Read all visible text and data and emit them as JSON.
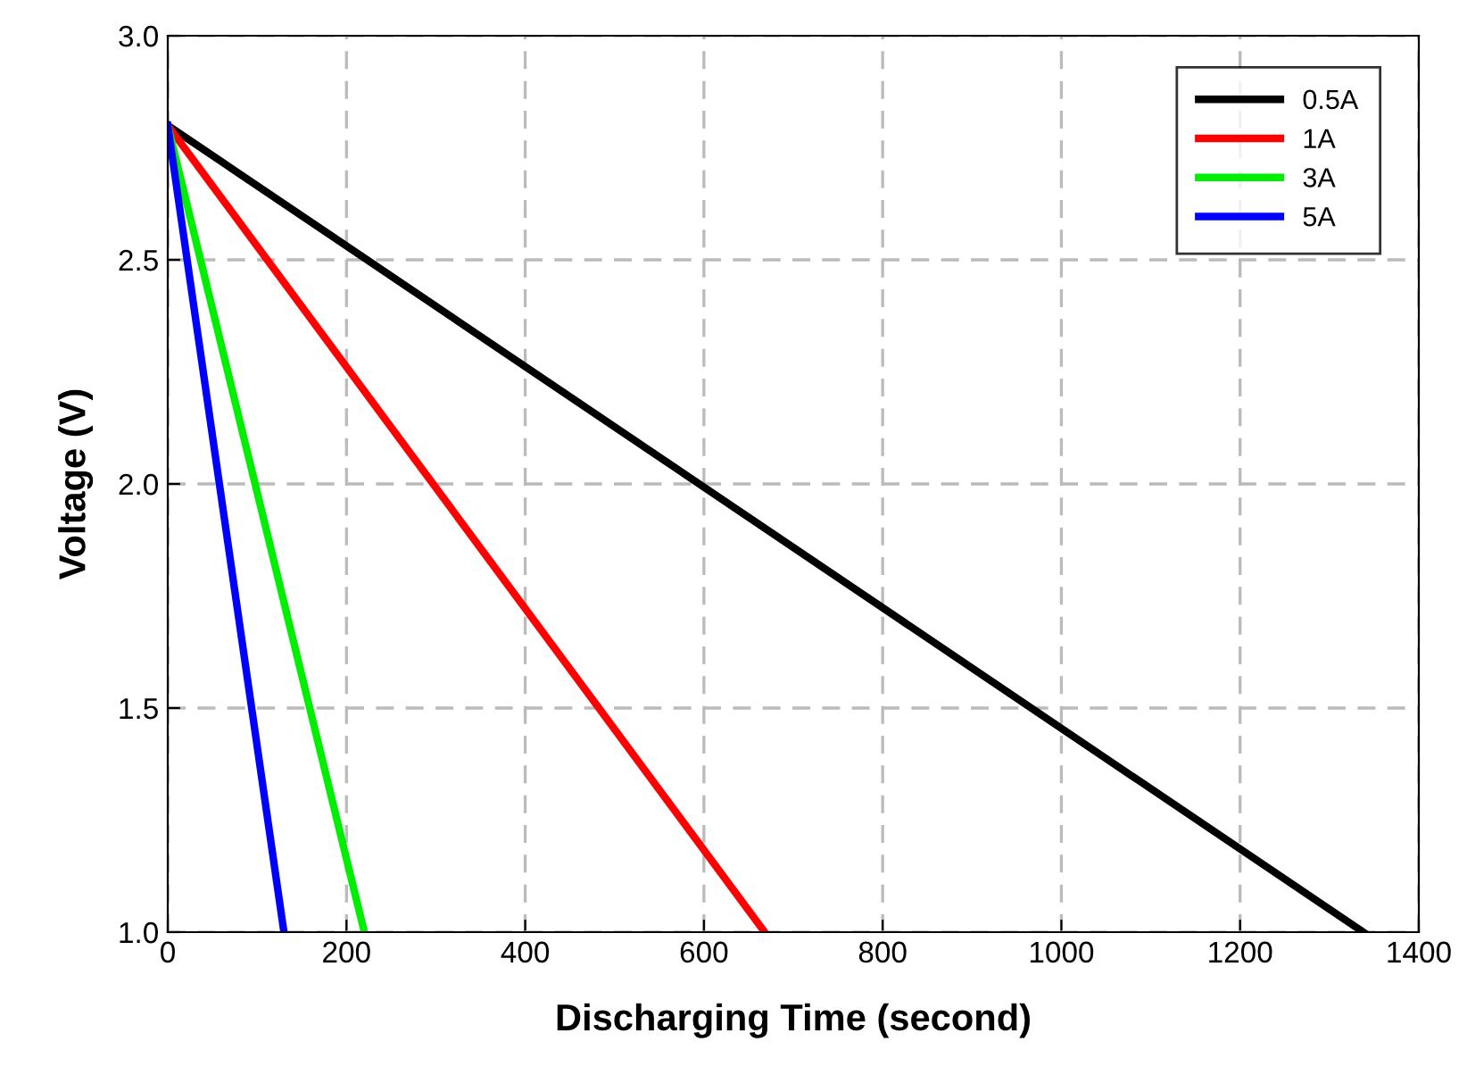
{
  "chart_data": {
    "type": "line",
    "xlabel": "Discharging Time (second)",
    "ylabel": "Voltage (V)",
    "xlim": [
      0,
      1400
    ],
    "ylim": [
      1.0,
      3.0
    ],
    "xticks": [
      0,
      200,
      400,
      600,
      800,
      1000,
      1200,
      1400
    ],
    "yticks": [
      {
        "value": 1.0,
        "label": "1.0"
      },
      {
        "value": 1.5,
        "label": "1.5"
      },
      {
        "value": 2.0,
        "label": "2.0"
      },
      {
        "value": 2.5,
        "label": "2.5"
      },
      {
        "value": 3.0,
        "label": "3.0"
      }
    ],
    "grid": true,
    "legend": "top right",
    "line_style": "solid",
    "marker": "none",
    "series": [
      {
        "name": "0.5A",
        "color": "#000000",
        "x": [
          0,
          1338
        ],
        "values": [
          2.8,
          1.0
        ]
      },
      {
        "name": "1A",
        "color": "#ff0000",
        "x": [
          0,
          668
        ],
        "values": [
          2.8,
          1.0
        ]
      },
      {
        "name": "3A",
        "color": "#00ee00",
        "x": [
          0,
          220
        ],
        "values": [
          2.8,
          1.0
        ]
      },
      {
        "name": "5A",
        "color": "#0000ff",
        "x": [
          0,
          130
        ],
        "values": [
          2.8,
          1.0
        ]
      }
    ]
  }
}
